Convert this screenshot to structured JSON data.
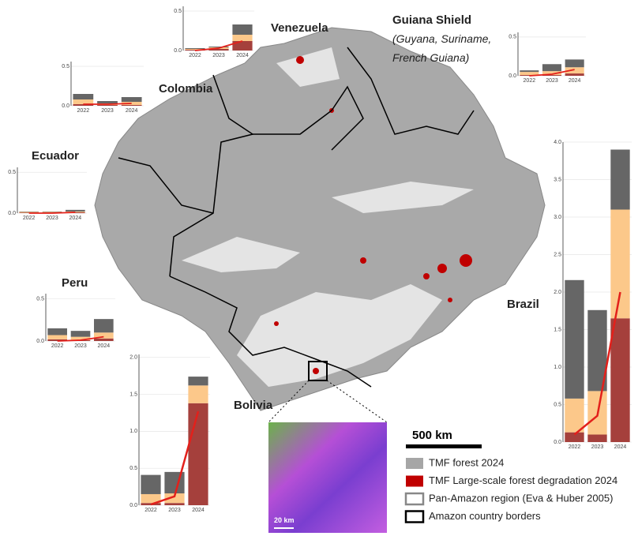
{
  "region_labels": [
    "Venezuela",
    "Guiana Shield",
    "Colombia",
    "Ecuador",
    "Peru",
    "Bolivia",
    "Brazil"
  ],
  "guiana_note": [
    "(Guyana, Suriname,",
    "French Guiana)"
  ],
  "scale_bar": "500 km",
  "inset_scale": "20 km",
  "legend": [
    {
      "label": "TMF forest 2024",
      "color": "#a6a6a6"
    },
    {
      "label": "TMF Large-scale forest degradation 2024",
      "color": "#c00000"
    },
    {
      "label": "Pan-Amazon region (Eva & Huber 2005)",
      "color": "#888888"
    },
    {
      "label": "Amazon country borders",
      "color": "#000000"
    }
  ],
  "charts": [
    {
      "type": "bar",
      "categories": [
        "2022",
        "2023",
        "2024"
      ],
      "ylim": [
        0,
        0.56
      ],
      "yticks": [
        {
          "value": 0,
          "label": "0.0"
        },
        0.5
      ],
      "series": [
        {
          "color": "#a5403c",
          "values": [
            0.01,
            0.02,
            0.12
          ]
        },
        {
          "color": "#fcc88a",
          "values": [
            0.01,
            0.02,
            0.08
          ]
        },
        {
          "color": "#666666",
          "values": [
            0.01,
            0.01,
            0.13
          ]
        }
      ],
      "line": {
        "color": "#e3201b",
        "values": [
          0,
          0.03,
          0.12
        ]
      }
    },
    {
      "type": "bar",
      "categories": [
        "2022",
        "2023",
        "2024"
      ],
      "ylim": [
        0,
        0.56
      ],
      "yticks": [
        {
          "value": 0,
          "label": "0.0"
        },
        0.5
      ],
      "series": [
        {
          "color": "#a5403c",
          "values": [
            0.01,
            0.01,
            0.03
          ]
        },
        {
          "color": "#fcc88a",
          "values": [
            0.04,
            0.05,
            0.08
          ]
        },
        {
          "color": "#666666",
          "values": [
            0.02,
            0.09,
            0.1
          ]
        }
      ],
      "line": {
        "color": "#e3201b",
        "values": [
          0,
          0.02,
          0.08
        ]
      }
    },
    {
      "type": "bar",
      "categories": [
        "2022",
        "2023",
        "2024"
      ],
      "ylim": [
        0,
        0.56
      ],
      "yticks": [
        {
          "value": 0,
          "label": "0.0"
        },
        0.5
      ],
      "series": [
        {
          "color": "#a5403c",
          "values": [
            0.02,
            0.01,
            0.01
          ]
        },
        {
          "color": "#fcc88a",
          "values": [
            0.06,
            0.02,
            0.04
          ]
        },
        {
          "color": "#666666",
          "values": [
            0.07,
            0.03,
            0.06
          ]
        }
      ],
      "line": {
        "color": "#e3201b",
        "values": [
          0.02,
          0.02,
          0.03
        ]
      }
    },
    {
      "type": "bar",
      "categories": [
        "2022",
        "2023",
        "2024"
      ],
      "ylim": [
        0,
        0.56
      ],
      "yticks": [
        {
          "value": 0,
          "label": "0.0"
        },
        0.5
      ],
      "series": [
        {
          "color": "#a5403c",
          "values": [
            0.005,
            0.005,
            0.01
          ]
        },
        {
          "color": "#fcc88a",
          "values": [
            0.01,
            0.01,
            0.01
          ]
        },
        {
          "color": "#666666",
          "values": [
            0.005,
            0.005,
            0.02
          ]
        }
      ],
      "line": {
        "color": "#e3201b",
        "values": [
          0,
          0,
          0.01
        ]
      }
    },
    {
      "type": "bar",
      "categories": [
        "2022",
        "2023",
        "2024"
      ],
      "ylim": [
        0,
        0.56
      ],
      "yticks": [
        {
          "value": 0,
          "label": "0.0"
        },
        0.5
      ],
      "series": [
        {
          "color": "#a5403c",
          "values": [
            0.02,
            0.01,
            0.03
          ]
        },
        {
          "color": "#fcc88a",
          "values": [
            0.05,
            0.04,
            0.07
          ]
        },
        {
          "color": "#666666",
          "values": [
            0.08,
            0.07,
            0.16
          ]
        }
      ],
      "line": {
        "color": "#e3201b",
        "values": [
          0,
          0.01,
          0.05
        ]
      }
    },
    {
      "type": "bar",
      "categories": [
        "2022",
        "2023",
        "2024"
      ],
      "ylim": [
        0,
        2.04
      ],
      "yticks": [
        {
          "value": 0,
          "label": "0.0"
        },
        0.5,
        {
          "value": 1,
          "label": "1.0"
        },
        1.5,
        {
          "value": 2,
          "label": "2.0"
        }
      ],
      "series": [
        {
          "color": "#a5403c",
          "values": [
            0.03,
            0.03,
            1.38
          ]
        },
        {
          "color": "#fcc88a",
          "values": [
            0.12,
            0.13,
            0.24
          ]
        },
        {
          "color": "#666666",
          "values": [
            0.26,
            0.29,
            0.12
          ]
        }
      ],
      "line": {
        "color": "#e3201b",
        "values": [
          0.01,
          0.12,
          1.27
        ]
      }
    },
    {
      "type": "bar",
      "categories": [
        "2022",
        "2023",
        "2024"
      ],
      "ylim": [
        0,
        4
      ],
      "yticks": [
        {
          "value": 0,
          "label": "0.0"
        },
        0.5,
        {
          "value": 1,
          "label": "1.0"
        },
        1.5,
        {
          "value": 2,
          "label": "2.0"
        },
        2.5,
        {
          "value": 3,
          "label": "3.0"
        },
        3.5,
        {
          "value": 4,
          "label": "4.0"
        }
      ],
      "series": [
        {
          "color": "#a5403c",
          "values": [
            0.13,
            0.1,
            1.65
          ]
        },
        {
          "color": "#fcc88a",
          "values": [
            0.45,
            0.58,
            1.45
          ]
        },
        {
          "color": "#666666",
          "values": [
            1.58,
            1.08,
            0.8
          ]
        }
      ],
      "line": {
        "color": "#e3201b",
        "values": [
          0.1,
          0.35,
          2
        ]
      }
    }
  ]
}
